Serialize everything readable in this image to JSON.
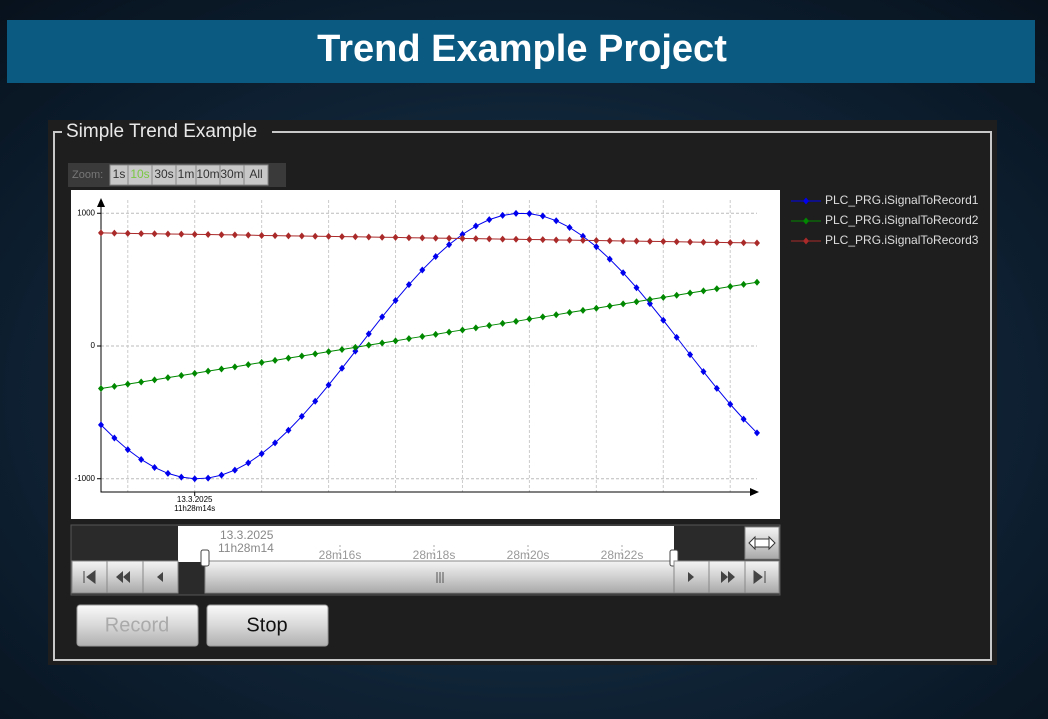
{
  "header": {
    "title": "Trend Example Project"
  },
  "group": {
    "title": "Simple Trend Example"
  },
  "zoom": {
    "label": "Zoom:",
    "options": [
      "1s",
      "10s",
      "30s",
      "1m",
      "10m",
      "30m",
      "All"
    ],
    "active": 1
  },
  "chart_data": {
    "type": "line",
    "categories": [
      null,
      null,
      null,
      null,
      null,
      null,
      null,
      "13.3.2025 11h28m14s",
      null,
      null,
      null,
      null,
      null,
      null,
      null,
      null,
      null,
      null,
      null,
      null,
      null,
      null,
      null,
      null,
      null,
      null,
      null,
      null,
      null,
      null,
      null,
      null,
      null,
      null,
      null,
      null,
      null,
      null,
      null,
      null,
      null,
      null,
      null,
      null,
      null,
      null,
      null,
      null,
      null,
      null
    ],
    "ylim": [
      -1100,
      1100
    ],
    "yticks": [
      -1000,
      0,
      1000
    ],
    "grid": true,
    "legend": "right",
    "series": [
      {
        "name": "PLC_PRG.iSignalToRecord1",
        "color": "#0000ee",
        "values": [
          -594,
          -693,
          -781,
          -855,
          -915,
          -960,
          -988,
          -1000,
          -995,
          -973,
          -935,
          -881,
          -812,
          -730,
          -635,
          -530,
          -416,
          -294,
          -168,
          -39,
          91,
          219,
          343,
          462,
          573,
          674,
          764,
          841,
          904,
          952,
          984,
          999,
          997,
          979,
          944,
          893,
          827,
          748,
          655,
          552,
          439,
          319,
          194,
          65,
          -65,
          -193,
          -319,
          -439,
          -551,
          -655
        ]
      },
      {
        "name": "PLC_PRG.iSignalToRecord2",
        "color": "#008800",
        "values": [
          -320,
          -304,
          -287,
          -271,
          -255,
          -238,
          -222,
          -206,
          -189,
          -173,
          -157,
          -140,
          -124,
          -108,
          -91,
          -75,
          -59,
          -42,
          -26,
          -10,
          7,
          23,
          39,
          56,
          72,
          88,
          105,
          121,
          137,
          154,
          170,
          186,
          203,
          219,
          235,
          252,
          268,
          284,
          301,
          317,
          333,
          350,
          366,
          382,
          399,
          415,
          431,
          448,
          464,
          480
        ]
      },
      {
        "name": "PLC_PRG.iSignalToRecord3",
        "color": "#aa2a2a",
        "values": [
          852,
          850,
          849,
          847,
          846,
          844,
          843,
          841,
          840,
          838,
          837,
          835,
          833,
          832,
          830,
          829,
          827,
          826,
          824,
          823,
          821,
          819,
          818,
          816,
          815,
          813,
          812,
          810,
          809,
          807,
          805,
          804,
          802,
          801,
          799,
          798,
          796,
          795,
          793,
          791,
          790,
          788,
          787,
          785,
          784,
          782,
          781,
          779,
          778,
          776
        ]
      }
    ]
  },
  "timeline": {
    "date": "13.3.2025",
    "start": "11h28m14",
    "labels": [
      "28m16s",
      "28m18s",
      "28m20s",
      "28m22s"
    ]
  },
  "buttons": {
    "record": "Record",
    "stop": "Stop"
  }
}
